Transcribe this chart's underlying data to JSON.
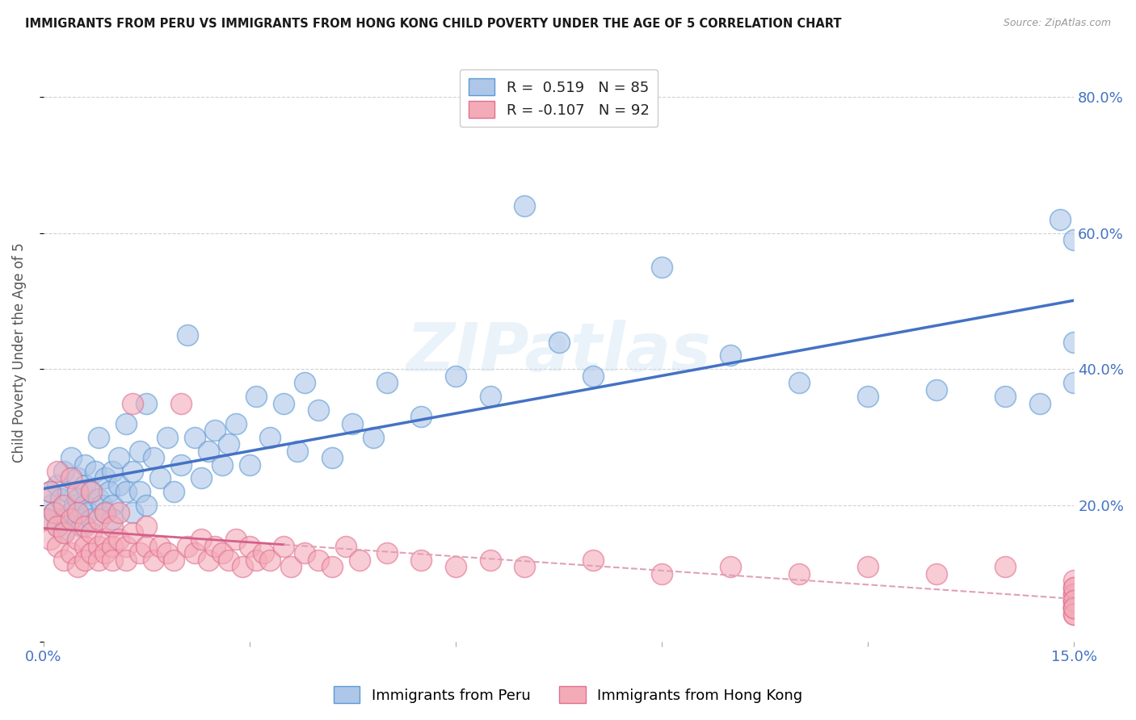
{
  "title": "IMMIGRANTS FROM PERU VS IMMIGRANTS FROM HONG KONG CHILD POVERTY UNDER THE AGE OF 5 CORRELATION CHART",
  "source": "Source: ZipAtlas.com",
  "ylabel": "Child Poverty Under the Age of 5",
  "legend_label_peru": "Immigrants from Peru",
  "legend_label_hk": "Immigrants from Hong Kong",
  "legend_r_peru": "R =  0.519",
  "legend_n_peru": "N = 85",
  "legend_r_hk": "R = -0.107",
  "legend_n_hk": "N = 92",
  "color_peru_fill": "#aec6e8",
  "color_peru_edge": "#5b9bd5",
  "color_hk_fill": "#f4abb8",
  "color_hk_edge": "#e07090",
  "color_peru_line": "#4472c4",
  "color_hk_line_solid": "#d4608a",
  "color_hk_line_dash": "#e0a0b8",
  "watermark": "ZIPatlas",
  "background_color": "#ffffff",
  "grid_color": "#cccccc",
  "peru_x": [
    0.0005,
    0.001,
    0.001,
    0.0015,
    0.002,
    0.002,
    0.0025,
    0.003,
    0.003,
    0.003,
    0.0035,
    0.004,
    0.004,
    0.0045,
    0.005,
    0.005,
    0.005,
    0.0055,
    0.006,
    0.006,
    0.006,
    0.0065,
    0.007,
    0.007,
    0.0075,
    0.008,
    0.008,
    0.0085,
    0.009,
    0.009,
    0.0095,
    0.01,
    0.01,
    0.01,
    0.011,
    0.011,
    0.012,
    0.012,
    0.013,
    0.013,
    0.014,
    0.014,
    0.015,
    0.015,
    0.016,
    0.017,
    0.018,
    0.019,
    0.02,
    0.021,
    0.022,
    0.023,
    0.024,
    0.025,
    0.026,
    0.027,
    0.028,
    0.03,
    0.031,
    0.033,
    0.035,
    0.037,
    0.038,
    0.04,
    0.042,
    0.045,
    0.048,
    0.05,
    0.055,
    0.06,
    0.065,
    0.07,
    0.075,
    0.08,
    0.09,
    0.1,
    0.11,
    0.12,
    0.13,
    0.14,
    0.145,
    0.148,
    0.15,
    0.15,
    0.15
  ],
  "peru_y": [
    0.18,
    0.2,
    0.22,
    0.19,
    0.17,
    0.23,
    0.21,
    0.18,
    0.25,
    0.16,
    0.22,
    0.19,
    0.27,
    0.2,
    0.18,
    0.24,
    0.21,
    0.17,
    0.2,
    0.23,
    0.26,
    0.19,
    0.22,
    0.18,
    0.25,
    0.21,
    0.3,
    0.2,
    0.24,
    0.19,
    0.22,
    0.2,
    0.25,
    0.18,
    0.23,
    0.27,
    0.22,
    0.32,
    0.25,
    0.19,
    0.28,
    0.22,
    0.2,
    0.35,
    0.27,
    0.24,
    0.3,
    0.22,
    0.26,
    0.45,
    0.3,
    0.24,
    0.28,
    0.31,
    0.26,
    0.29,
    0.32,
    0.26,
    0.36,
    0.3,
    0.35,
    0.28,
    0.38,
    0.34,
    0.27,
    0.32,
    0.3,
    0.38,
    0.33,
    0.39,
    0.36,
    0.64,
    0.44,
    0.39,
    0.55,
    0.42,
    0.38,
    0.36,
    0.37,
    0.36,
    0.35,
    0.62,
    0.59,
    0.44,
    0.38
  ],
  "hk_x": [
    0.0005,
    0.001,
    0.001,
    0.0015,
    0.002,
    0.002,
    0.002,
    0.003,
    0.003,
    0.003,
    0.004,
    0.004,
    0.004,
    0.005,
    0.005,
    0.005,
    0.005,
    0.006,
    0.006,
    0.006,
    0.007,
    0.007,
    0.007,
    0.008,
    0.008,
    0.008,
    0.009,
    0.009,
    0.009,
    0.01,
    0.01,
    0.01,
    0.011,
    0.011,
    0.012,
    0.012,
    0.013,
    0.013,
    0.014,
    0.015,
    0.015,
    0.016,
    0.017,
    0.018,
    0.019,
    0.02,
    0.021,
    0.022,
    0.023,
    0.024,
    0.025,
    0.026,
    0.027,
    0.028,
    0.029,
    0.03,
    0.031,
    0.032,
    0.033,
    0.035,
    0.036,
    0.038,
    0.04,
    0.042,
    0.044,
    0.046,
    0.05,
    0.055,
    0.06,
    0.065,
    0.07,
    0.08,
    0.09,
    0.1,
    0.11,
    0.12,
    0.13,
    0.14,
    0.15,
    0.15,
    0.15,
    0.15,
    0.15,
    0.15,
    0.15,
    0.15,
    0.15,
    0.15,
    0.15,
    0.15,
    0.15,
    0.15
  ],
  "hk_y": [
    0.18,
    0.15,
    0.22,
    0.19,
    0.14,
    0.17,
    0.25,
    0.12,
    0.16,
    0.2,
    0.13,
    0.18,
    0.24,
    0.15,
    0.11,
    0.19,
    0.22,
    0.14,
    0.17,
    0.12,
    0.13,
    0.16,
    0.22,
    0.14,
    0.18,
    0.12,
    0.15,
    0.13,
    0.19,
    0.14,
    0.17,
    0.12,
    0.15,
    0.19,
    0.14,
    0.12,
    0.16,
    0.35,
    0.13,
    0.14,
    0.17,
    0.12,
    0.14,
    0.13,
    0.12,
    0.35,
    0.14,
    0.13,
    0.15,
    0.12,
    0.14,
    0.13,
    0.12,
    0.15,
    0.11,
    0.14,
    0.12,
    0.13,
    0.12,
    0.14,
    0.11,
    0.13,
    0.12,
    0.11,
    0.14,
    0.12,
    0.13,
    0.12,
    0.11,
    0.12,
    0.11,
    0.12,
    0.1,
    0.11,
    0.1,
    0.11,
    0.1,
    0.11,
    0.05,
    0.07,
    0.06,
    0.08,
    0.09,
    0.05,
    0.06,
    0.07,
    0.08,
    0.04,
    0.05,
    0.06,
    0.04,
    0.05
  ],
  "xlim": [
    0.0,
    0.15
  ],
  "ylim": [
    0.0,
    0.85
  ],
  "xticks": [
    0.0,
    0.03,
    0.06,
    0.09,
    0.12,
    0.15
  ],
  "yticks": [
    0.0,
    0.2,
    0.4,
    0.6,
    0.8
  ],
  "right_ytick_labels": [
    "",
    "20.0%",
    "40.0%",
    "60.0%",
    "80.0%"
  ],
  "xtick_labels_show": {
    "0.0": "0.0%",
    "0.15": "15.0%"
  }
}
